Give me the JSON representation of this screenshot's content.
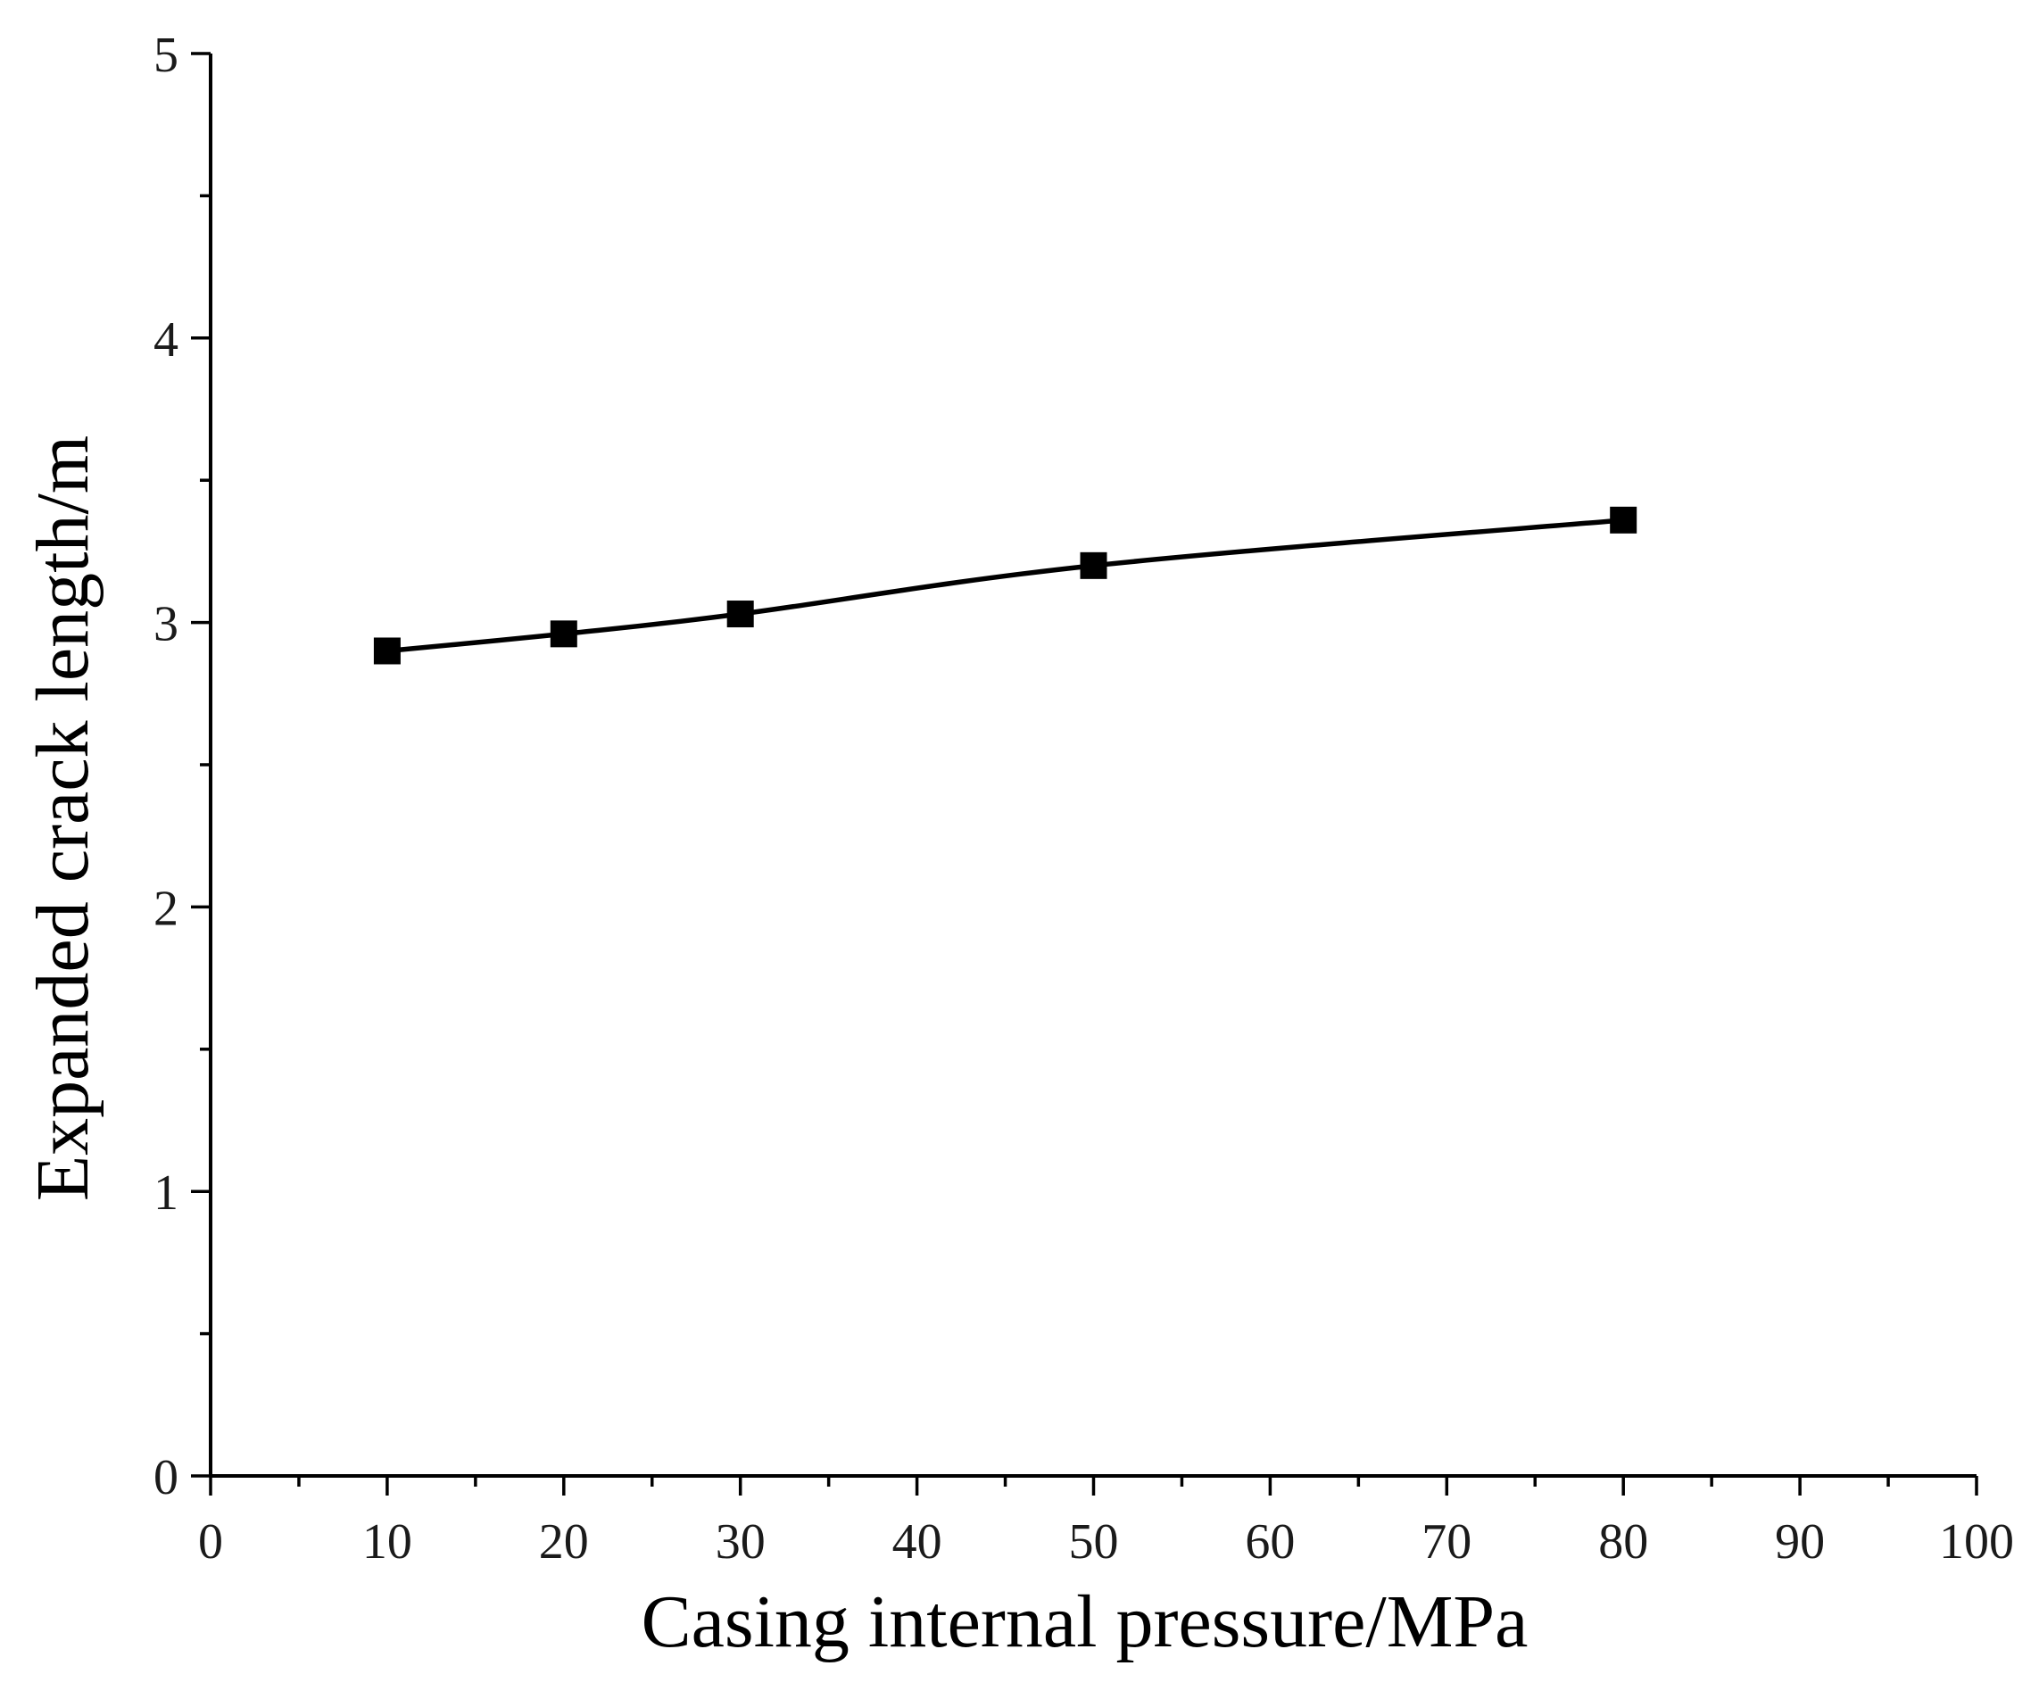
{
  "chart_data": {
    "type": "line",
    "title": "",
    "xlabel": "Casing internal pressure/MPa",
    "ylabel": "Expanded crack length/m",
    "xlim": [
      0,
      100
    ],
    "ylim": [
      0,
      5
    ],
    "xticks": [
      0,
      10,
      20,
      30,
      40,
      50,
      60,
      70,
      80,
      90,
      100
    ],
    "xtick_labels": [
      "0",
      "10",
      "20",
      "30",
      "40",
      "50",
      "60",
      "70",
      "80",
      "90",
      "100"
    ],
    "x_minor_step": 5,
    "yticks": [
      0,
      1,
      2,
      3,
      4,
      5
    ],
    "ytick_labels": [
      "0",
      "1",
      "2",
      "3",
      "4",
      "5"
    ],
    "y_minor_step": 0.5,
    "grid": false,
    "series": [
      {
        "name": "Expanded crack length",
        "marker": "square",
        "color": "#000000",
        "x": [
          10,
          20,
          30,
          50,
          80
        ],
        "y": [
          2.9,
          2.96,
          3.03,
          3.2,
          3.36
        ]
      }
    ]
  }
}
